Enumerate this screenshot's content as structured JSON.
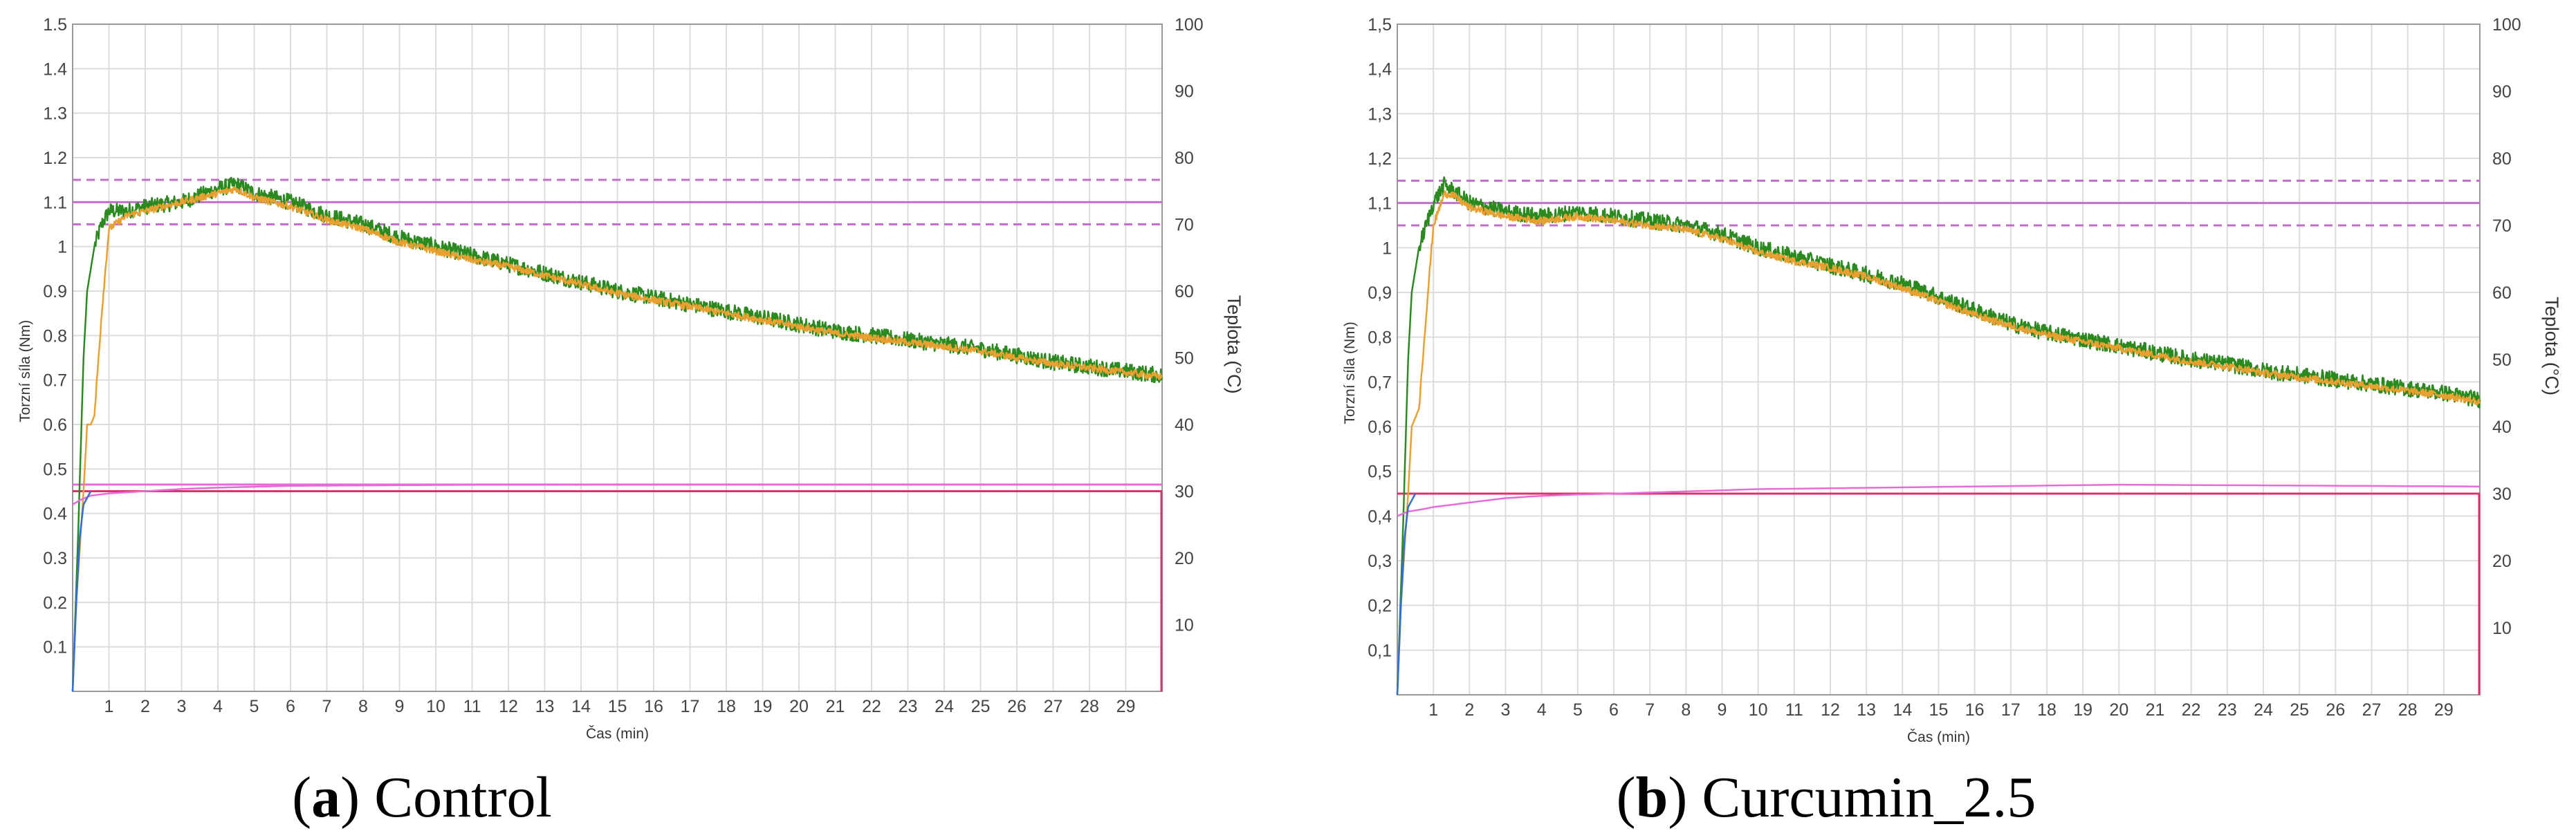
{
  "chart_data": [
    {
      "type": "line",
      "panel_letter": "a",
      "panel_title": "Control",
      "decimal": ".",
      "xlabel": "Čas (min)",
      "ylabel": "Torzní síla (Nm)",
      "y2label": "Teplota   (°C)",
      "xlim": [
        0,
        30
      ],
      "ylim": [
        0,
        1.5
      ],
      "y2lim": [
        0,
        100
      ],
      "x_ticks": [
        1,
        2,
        3,
        4,
        5,
        6,
        7,
        8,
        9,
        10,
        11,
        12,
        13,
        14,
        15,
        16,
        17,
        18,
        19,
        20,
        21,
        22,
        23,
        24,
        25,
        26,
        27,
        28,
        29
      ],
      "y_ticks": [
        0.1,
        0.2,
        0.3,
        0.4,
        0.5,
        0.6,
        0.7,
        0.8,
        0.9,
        1,
        1.1,
        1.2,
        1.3,
        1.4,
        1.5
      ],
      "y2_ticks": [
        10,
        20,
        30,
        40,
        50,
        60,
        70,
        80,
        90,
        100
      ],
      "grid": true,
      "reference_lines": [
        {
          "y": 1.1,
          "style": "solid",
          "color": "#c070c8"
        },
        {
          "y": 1.15,
          "style": "dashed",
          "color": "#c070c8"
        },
        {
          "y": 1.05,
          "style": "dashed",
          "color": "#c070c8"
        },
        {
          "y": 0.45,
          "style": "solid",
          "color": "#e0306a"
        },
        {
          "y": 0.465,
          "style": "solid",
          "color": "#e86ad8"
        }
      ],
      "series": [
        {
          "color": "#2a8a1f",
          "x": [
            0,
            0.15,
            0.3,
            0.4,
            0.6,
            0.8,
            1,
            1.5,
            2,
            3,
            4,
            4.5,
            5,
            6,
            7,
            8,
            9,
            10,
            11,
            12,
            13,
            14,
            15,
            16,
            17,
            18,
            19,
            20,
            21,
            22,
            23,
            24,
            25,
            26,
            27,
            28,
            29,
            30
          ],
          "values": [
            0,
            0.35,
            0.75,
            0.9,
            1.0,
            1.05,
            1.08,
            1.08,
            1.09,
            1.1,
            1.13,
            1.14,
            1.12,
            1.1,
            1.07,
            1.05,
            1.02,
            1.0,
            0.98,
            0.96,
            0.94,
            0.92,
            0.9,
            0.885,
            0.87,
            0.855,
            0.84,
            0.825,
            0.81,
            0.8,
            0.79,
            0.78,
            0.77,
            0.755,
            0.74,
            0.73,
            0.72,
            0.71
          ]
        },
        {
          "color": "#e8a030",
          "x": [
            0,
            0.1,
            0.3,
            0.4,
            0.5,
            0.6,
            0.8,
            1.0,
            1.5,
            2,
            3,
            4,
            4.5,
            5,
            6,
            7,
            8,
            9,
            10,
            11,
            12,
            13,
            14,
            15,
            16,
            17,
            18,
            19,
            20,
            21,
            22,
            23,
            24,
            25,
            26,
            27,
            28,
            29,
            30
          ],
          "values": [
            0,
            0.2,
            0.45,
            0.6,
            0.6,
            0.62,
            0.85,
            1.04,
            1.07,
            1.08,
            1.1,
            1.12,
            1.13,
            1.11,
            1.09,
            1.06,
            1.04,
            1.01,
            0.99,
            0.97,
            0.955,
            0.935,
            0.915,
            0.895,
            0.88,
            0.865,
            0.85,
            0.835,
            0.82,
            0.805,
            0.795,
            0.785,
            0.775,
            0.765,
            0.75,
            0.737,
            0.727,
            0.717,
            0.707
          ]
        },
        {
          "color": "#e86ad8",
          "x": [
            0,
            0.2,
            0.5,
            1,
            2,
            3,
            4,
            5,
            6,
            8,
            10,
            15,
            20,
            25,
            30
          ],
          "values": [
            0.42,
            0.43,
            0.44,
            0.445,
            0.45,
            0.455,
            0.458,
            0.46,
            0.462,
            0.463,
            0.464,
            0.465,
            0.465,
            0.465,
            0.465
          ]
        },
        {
          "color": "#2f6fd6",
          "x": [
            0,
            0.1,
            0.2,
            0.3,
            0.5
          ],
          "values": [
            0,
            0.2,
            0.35,
            0.42,
            0.45
          ]
        }
      ]
    },
    {
      "type": "line",
      "panel_letter": "b",
      "panel_title": "Curcumin_2.5",
      "decimal": ",",
      "xlabel": "Čas (min)",
      "ylabel": "Torzní síla (Nm)",
      "y2label": "Teplota   (°C)",
      "xlim": [
        0,
        30
      ],
      "ylim": [
        0,
        1.5
      ],
      "y2lim": [
        0,
        100
      ],
      "x_ticks": [
        1,
        2,
        3,
        4,
        5,
        6,
        7,
        8,
        9,
        10,
        11,
        12,
        13,
        14,
        15,
        16,
        17,
        18,
        19,
        20,
        21,
        22,
        23,
        24,
        25,
        26,
        27,
        28,
        29
      ],
      "y_ticks": [
        0.1,
        0.2,
        0.3,
        0.4,
        0.5,
        0.6,
        0.7,
        0.8,
        0.9,
        1,
        1.1,
        1.2,
        1.3,
        1.4,
        1.5
      ],
      "y2_ticks": [
        10,
        20,
        30,
        40,
        50,
        60,
        70,
        80,
        90,
        100
      ],
      "grid": true,
      "reference_lines": [
        {
          "y": 1.1,
          "style": "solid",
          "color": "#c070c8"
        },
        {
          "y": 1.15,
          "style": "dashed",
          "color": "#c070c8"
        },
        {
          "y": 1.05,
          "style": "dashed",
          "color": "#c070c8"
        },
        {
          "y": 0.45,
          "style": "solid",
          "color": "#e0306a"
        }
      ],
      "series": [
        {
          "color": "#2a8a1f",
          "x": [
            0,
            0.15,
            0.3,
            0.4,
            0.6,
            0.8,
            1,
            1.3,
            1.5,
            2,
            3,
            4,
            5,
            6,
            7,
            8,
            9,
            10,
            11,
            12,
            13,
            14,
            15,
            16,
            17,
            18,
            19,
            20,
            21,
            22,
            23,
            24,
            25,
            26,
            27,
            28,
            29,
            30
          ],
          "values": [
            0,
            0.35,
            0.75,
            0.9,
            1.0,
            1.05,
            1.1,
            1.14,
            1.13,
            1.1,
            1.08,
            1.07,
            1.08,
            1.07,
            1.06,
            1.05,
            1.03,
            1.0,
            0.98,
            0.96,
            0.94,
            0.92,
            0.89,
            0.86,
            0.83,
            0.81,
            0.795,
            0.78,
            0.765,
            0.75,
            0.74,
            0.725,
            0.715,
            0.705,
            0.695,
            0.685,
            0.675,
            0.66
          ]
        },
        {
          "color": "#e8a030",
          "x": [
            0,
            0.1,
            0.3,
            0.4,
            0.5,
            0.6,
            0.8,
            1.0,
            1.3,
            1.5,
            2,
            3,
            4,
            5,
            6,
            7,
            8,
            9,
            10,
            11,
            12,
            13,
            14,
            15,
            16,
            17,
            18,
            19,
            20,
            21,
            22,
            23,
            24,
            25,
            26,
            27,
            28,
            29,
            30
          ],
          "values": [
            0,
            0.2,
            0.45,
            0.6,
            0.62,
            0.64,
            0.85,
            1.05,
            1.12,
            1.12,
            1.09,
            1.07,
            1.06,
            1.07,
            1.06,
            1.05,
            1.04,
            1.02,
            0.99,
            0.97,
            0.955,
            0.935,
            0.91,
            0.88,
            0.85,
            0.825,
            0.805,
            0.79,
            0.775,
            0.76,
            0.745,
            0.735,
            0.72,
            0.71,
            0.7,
            0.69,
            0.68,
            0.67,
            0.655
          ]
        },
        {
          "color": "#e86ad8",
          "x": [
            0,
            0.3,
            0.7,
            1,
            2,
            3,
            4,
            5,
            6,
            8,
            10,
            15,
            20,
            25,
            30
          ],
          "values": [
            0.4,
            0.41,
            0.415,
            0.42,
            0.43,
            0.44,
            0.445,
            0.448,
            0.45,
            0.455,
            0.46,
            0.465,
            0.47,
            0.468,
            0.466
          ]
        },
        {
          "color": "#2f6fd6",
          "x": [
            0,
            0.1,
            0.2,
            0.3,
            0.5
          ],
          "values": [
            0,
            0.2,
            0.35,
            0.42,
            0.45
          ]
        }
      ]
    }
  ]
}
